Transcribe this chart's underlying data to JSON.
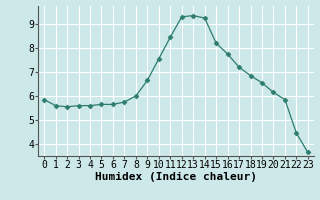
{
  "x": [
    0,
    1,
    2,
    3,
    4,
    5,
    6,
    7,
    8,
    9,
    10,
    11,
    12,
    13,
    14,
    15,
    16,
    17,
    18,
    19,
    20,
    21,
    22,
    23
  ],
  "y": [
    5.85,
    5.6,
    5.55,
    5.6,
    5.6,
    5.65,
    5.65,
    5.75,
    6.0,
    6.65,
    7.55,
    8.45,
    9.3,
    9.35,
    9.25,
    8.2,
    7.75,
    7.2,
    6.85,
    6.55,
    6.15,
    5.85,
    4.45,
    3.65
  ],
  "line_color": "#2e7d6e",
  "marker": "D",
  "marker_size": 2.5,
  "bg_color": "#cce8e8",
  "grid_color": "#ffffff",
  "xlabel": "Humidex (Indice chaleur)",
  "xlim": [
    -0.5,
    23.5
  ],
  "ylim": [
    3.5,
    9.75
  ],
  "yticks": [
    4,
    5,
    6,
    7,
    8,
    9
  ],
  "xticks": [
    0,
    1,
    2,
    3,
    4,
    5,
    6,
    7,
    8,
    9,
    10,
    11,
    12,
    13,
    14,
    15,
    16,
    17,
    18,
    19,
    20,
    21,
    22,
    23
  ],
  "tick_fontsize": 7,
  "xlabel_fontsize": 8,
  "line_width": 0.9
}
